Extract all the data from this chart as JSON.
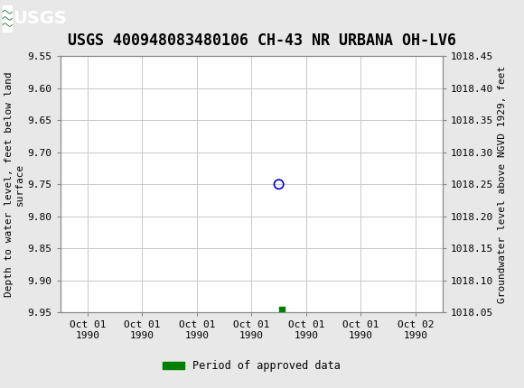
{
  "title": "USGS 400948083480106 CH-43 NR URBANA OH-LV6",
  "ylabel_left": "Depth to water level, feet below land\nsurface",
  "ylabel_right": "Groundwater level above NGVD 1929, feet",
  "ylim_left": [
    9.55,
    9.95
  ],
  "ylim_right": [
    1018.45,
    1018.05
  ],
  "yticks_left": [
    9.55,
    9.6,
    9.65,
    9.7,
    9.75,
    9.8,
    9.85,
    9.9,
    9.95
  ],
  "yticks_right": [
    1018.45,
    1018.4,
    1018.35,
    1018.3,
    1018.25,
    1018.2,
    1018.15,
    1018.1,
    1018.05
  ],
  "data_point_x": 3.5,
  "data_point_y": 9.75,
  "approved_point_x": 3.55,
  "approved_point_y": 9.945,
  "approved_color": "#008000",
  "data_point_color": "#0000cc",
  "header_bg_color": "#1a6b3c",
  "header_border_color": "#ffffff",
  "background_color": "#ffffff",
  "plot_bg_color": "#ffffff",
  "outer_bg_color": "#e8e8e8",
  "grid_color": "#c8c8c8",
  "legend_label": "Period of approved data",
  "font_family": "monospace",
  "title_fontsize": 12,
  "axis_label_fontsize": 8,
  "tick_fontsize": 8,
  "x_positions": [
    0,
    1,
    2,
    3,
    4,
    5,
    6
  ],
  "x_labels": [
    "Oct 01\n1990",
    "Oct 01\n1990",
    "Oct 01\n1990",
    "Oct 01\n1990",
    "Oct 01\n1990",
    "Oct 01\n1990",
    "Oct 02\n1990"
  ],
  "xlim": [
    -0.5,
    6.5
  ]
}
